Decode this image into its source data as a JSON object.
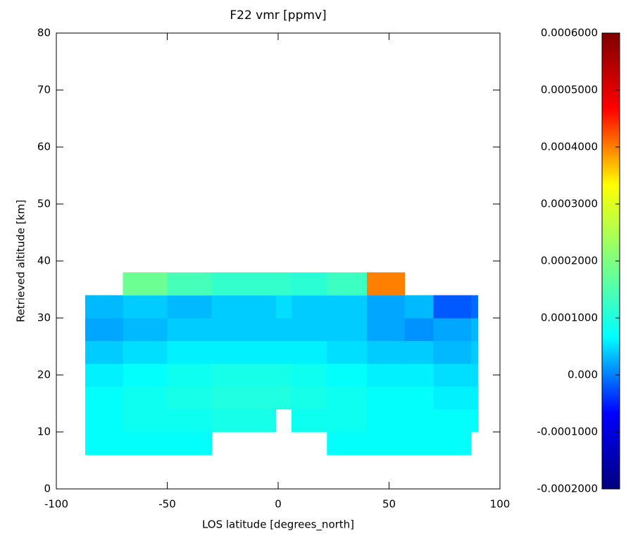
{
  "chart_data": {
    "type": "heatmap",
    "title": "F22 vmr [ppmv]",
    "xlabel": "LOS latitude [degrees_north]",
    "ylabel": "Retrieved altitude [km]",
    "xlim": [
      -100,
      100
    ],
    "xticks": [
      -100,
      -50,
      0,
      50,
      100
    ],
    "ylim": [
      0,
      80
    ],
    "yticks": [
      0,
      10,
      20,
      30,
      40,
      50,
      60,
      70,
      80
    ],
    "xbins": [
      -87,
      -70,
      -50,
      -30,
      -1,
      6,
      22,
      40,
      57,
      70,
      87,
      90
    ],
    "ybins": [
      6,
      10,
      14,
      18,
      22,
      26,
      30,
      34,
      38
    ],
    "values": [
      [
        7e-05,
        7e-05,
        7e-05,
        null,
        null,
        null,
        7e-05,
        7e-05,
        7e-05,
        7e-05,
        null
      ],
      [
        7e-05,
        8e-05,
        8e-05,
        9e-05,
        null,
        8e-05,
        8e-05,
        7e-05,
        7e-05,
        7e-05,
        7e-05
      ],
      [
        7e-05,
        8e-05,
        9e-05,
        0.0001,
        0.0001,
        9e-05,
        8e-05,
        7e-05,
        7e-05,
        6e-05,
        6e-05
      ],
      [
        6e-05,
        7e-05,
        8e-05,
        9e-05,
        9e-05,
        8e-05,
        7e-05,
        6e-05,
        6e-05,
        5e-05,
        5e-05
      ],
      [
        4e-05,
        5e-05,
        6e-05,
        6e-05,
        6e-05,
        6e-05,
        5e-05,
        4e-05,
        4e-05,
        3e-05,
        4e-05
      ],
      [
        2e-05,
        3e-05,
        4e-05,
        4e-05,
        4e-05,
        4e-05,
        4e-05,
        2e-05,
        1e-05,
        2e-05,
        3e-05
      ],
      [
        3e-05,
        4e-05,
        3e-05,
        4e-05,
        5e-05,
        4e-05,
        4e-05,
        2e-05,
        3e-05,
        -2e-05,
        -1e-05
      ],
      [
        null,
        0.00018,
        0.00014,
        0.00012,
        0.00012,
        0.00011,
        0.00013,
        0.0004,
        null,
        null,
        null
      ]
    ],
    "zlim": [
      -0.0002,
      0.0006
    ],
    "zticks": [
      {
        "value": 0.0006,
        "label": "0.0006000"
      },
      {
        "value": 0.0005,
        "label": "0.0005000"
      },
      {
        "value": 0.0004,
        "label": "0.0004000"
      },
      {
        "value": 0.0003,
        "label": "0.0003000"
      },
      {
        "value": 0.0002,
        "label": "0.0002000"
      },
      {
        "value": 0.0001,
        "label": "0.0001000"
      },
      {
        "value": 0,
        "label": "0.000"
      },
      {
        "value": -0.0001,
        "label": "-0.0001000"
      },
      {
        "value": -0.0002,
        "label": "-0.0002000"
      }
    ],
    "colorscale": [
      "#00007f",
      "#0000ff",
      "#00ffff",
      "#7fff7f",
      "#ffff00",
      "#ff0000",
      "#7f0000"
    ]
  }
}
